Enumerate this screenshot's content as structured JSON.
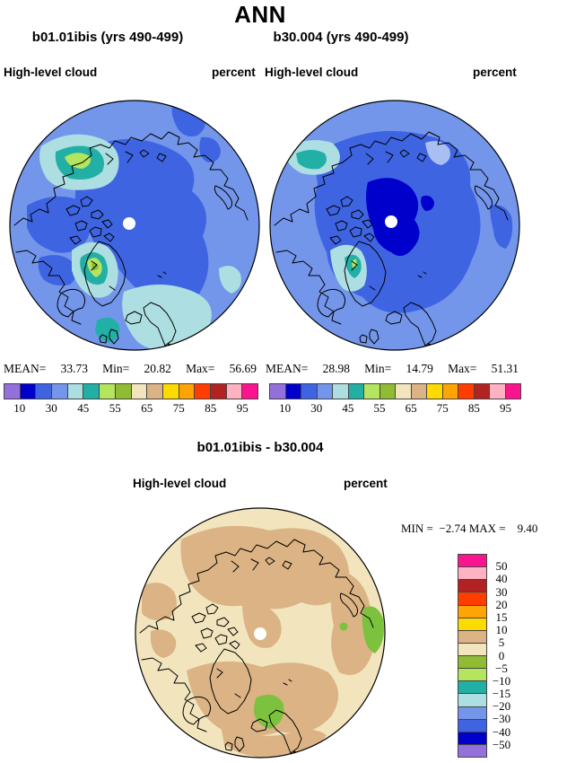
{
  "title": "ANN",
  "panels": [
    {
      "subtitle": "b01.01ibis (yrs 490-499)",
      "field": "High-level cloud",
      "units": "percent",
      "stats": {
        "mean_label": "MEAN=",
        "mean": "33.73",
        "min_label": "Min=",
        "min": "20.82",
        "max_label": "Max=",
        "max": "56.69"
      },
      "colorbar_labels": [
        "10",
        "30",
        "45",
        "55",
        "65",
        "75",
        "85",
        "95"
      ]
    },
    {
      "subtitle": "b30.004 (yrs 490-499)",
      "field": "High-level cloud",
      "units": "percent",
      "stats": {
        "mean_label": "MEAN=",
        "mean": "28.98",
        "min_label": "Min=",
        "min": "14.79",
        "max_label": "Max=",
        "max": "51.31"
      },
      "colorbar_labels": [
        "10",
        "30",
        "45",
        "55",
        "65",
        "75",
        "85",
        "95"
      ]
    }
  ],
  "diff": {
    "title": "b01.01ibis - b30.004",
    "field": "High-level cloud",
    "units": "percent",
    "min_max_line": "MIN =  −2.74 MAX =    9.40",
    "colorbar_labels": [
      "50",
      "40",
      "30",
      "20",
      "15",
      "10",
      "5",
      "0",
      "−5",
      "−10",
      "−15",
      "−20",
      "−30",
      "−40",
      "−50"
    ]
  },
  "palette": [
    "#9370DB",
    "#0000CD",
    "#3E64E2",
    "#7396EB",
    "#ADDEE1",
    "#21AFA6",
    "#B4E55F",
    "#90BC33",
    "#F2E5BE",
    "#DBB384",
    "#FFDA00",
    "#FFA405",
    "#FF3D00",
    "#B22222",
    "#FFB3C2",
    "#FB148F"
  ],
  "colors": {
    "map_green": "#7CC23E",
    "light_blue_patch": "#A9BFF2",
    "coastline": "#000000",
    "background": "#FFFFFF",
    "bar_border": "#444444",
    "pole_dot": "#FFFFFF"
  },
  "chart_data": [
    {
      "type": "heatmap",
      "subtype": "filled-contour-polar-map",
      "projection": "north-polar-stereographic",
      "season": "ANN",
      "title": "b01.01ibis (yrs 490-499)",
      "variable": "High-level cloud",
      "units": "percent",
      "stats": {
        "mean": 33.73,
        "min": 20.82,
        "max": 56.69
      },
      "colorbar": {
        "orientation": "horizontal",
        "tick_labels": [
          10,
          30,
          45,
          55,
          65,
          75,
          85,
          95
        ],
        "n_colors": 16,
        "colors": [
          "#9370DB",
          "#0000CD",
          "#3E64E2",
          "#7396EB",
          "#ADDEE1",
          "#21AFA6",
          "#B4E55F",
          "#90BC33",
          "#F2E5BE",
          "#DBB384",
          "#FFDA00",
          "#FFA405",
          "#FF3D00",
          "#B22222",
          "#FFB3C2",
          "#FB148F"
        ]
      },
      "notes": "Central Arctic mostly 20-30% (royal blue) on 30-40% background (cornflower); maxima 45-55% (cyan/teal/green cores) over Bering Strait-Alaska, south Greenland and near the British Isles/Scandinavia"
    },
    {
      "type": "heatmap",
      "subtype": "filled-contour-polar-map",
      "projection": "north-polar-stereographic",
      "season": "ANN",
      "title": "b30.004 (yrs 490-499)",
      "variable": "High-level cloud",
      "units": "percent",
      "stats": {
        "mean": 28.98,
        "min": 14.79,
        "max": 51.31
      },
      "colorbar": {
        "orientation": "horizontal",
        "tick_labels": [
          10,
          30,
          45,
          55,
          65,
          75,
          85,
          95
        ],
        "n_colors": 16,
        "colors": [
          "#9370DB",
          "#0000CD",
          "#3E64E2",
          "#7396EB",
          "#ADDEE1",
          "#21AFA6",
          "#B4E55F",
          "#90BC33",
          "#F2E5BE",
          "#DBB384",
          "#FFDA00",
          "#FFA405",
          "#FF3D00",
          "#B22222",
          "#FFB3C2",
          "#FB148F"
        ]
      },
      "notes": "Similar pattern but lower values; dark-blue core 10-20% over central Arctic Ocean near the pole; teal/cyan maxima over Bering side and south Greenland"
    },
    {
      "type": "heatmap",
      "subtype": "difference-polar-map",
      "projection": "north-polar-stereographic",
      "title": "b01.01ibis - b30.004",
      "variable": "High-level cloud",
      "units": "percent",
      "stats": {
        "min": -2.74,
        "max": 9.4
      },
      "colorbar": {
        "orientation": "vertical",
        "tick_labels": [
          50,
          40,
          30,
          20,
          15,
          10,
          5,
          0,
          -5,
          -10,
          -15,
          -20,
          -30,
          -40,
          -50
        ],
        "n_colors": 16,
        "colors": [
          "#FB148F",
          "#FFB3C2",
          "#B22222",
          "#FF3D00",
          "#FFA405",
          "#FFDA00",
          "#DBB384",
          "#F2E5BE",
          "#90BC33",
          "#B4E55F",
          "#21AFA6",
          "#ADDEE1",
          "#7396EB",
          "#3E64E2",
          "#0000CD",
          "#9370DB"
        ]
      },
      "notes": "Differences mostly 0 to +5 (cream) with +5 to +10 bands (tan) over Siberia, Canada and the mid-Arctic; a few small -5 to 0 green spots near Iceland and eastern edge"
    }
  ]
}
